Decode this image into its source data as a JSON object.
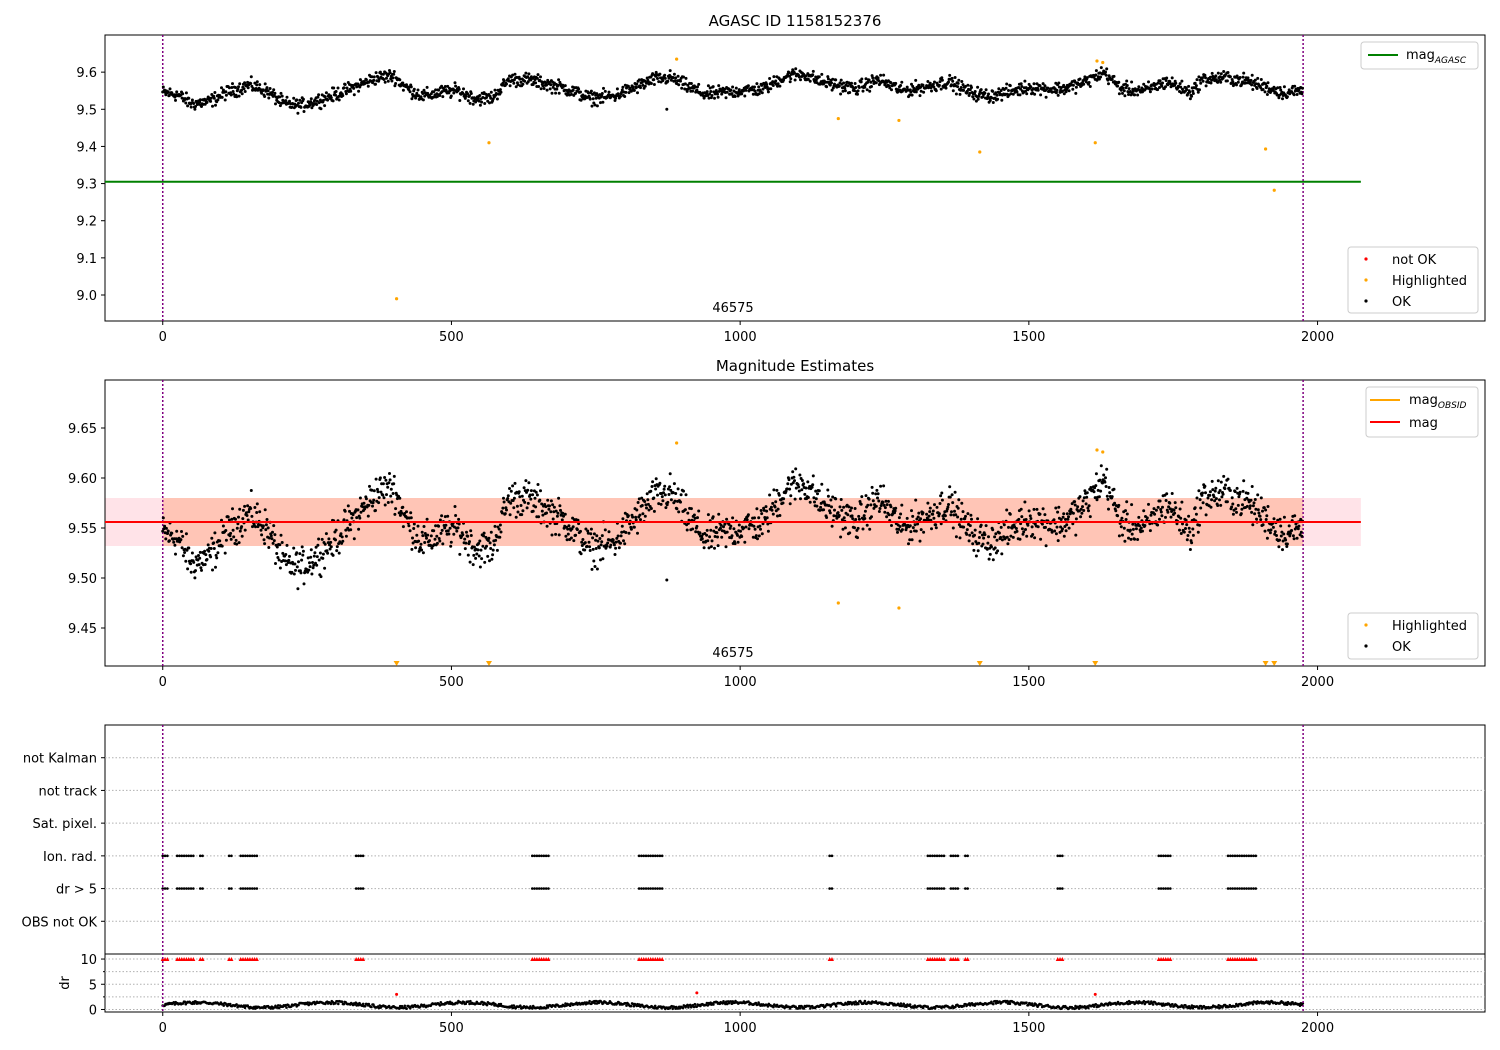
{
  "figure": {
    "chart_data": [
      {
        "type": "scatter",
        "title": "AGASC ID 1158152376",
        "xlim": [
          -100,
          2290
        ],
        "ylim": [
          8.93,
          9.7
        ],
        "xticks": [
          0,
          500,
          1000,
          1500,
          2000
        ],
        "yticks": [
          9.0,
          9.1,
          9.2,
          9.3,
          9.4,
          9.5,
          9.6
        ],
        "vlines": [
          0,
          1975
        ],
        "obsid_label": "46575",
        "hlines": [
          {
            "name": "mag",
            "sub": "AGASC",
            "y": 9.305,
            "x": [
              -100,
              2075
            ],
            "color": "#008000"
          }
        ],
        "series": [
          {
            "name": "not OK",
            "color": "#ff0000",
            "x": [],
            "y": []
          },
          {
            "name": "Highlighted",
            "color": "#ffa500",
            "x": [
              405,
              565,
              890,
              1170,
              1275,
              1415,
              1615,
              1618,
              1628,
              1910,
              1925
            ],
            "y": [
              8.99,
              9.41,
              9.635,
              9.475,
              9.47,
              9.385,
              9.41,
              9.63,
              9.626,
              9.393,
              9.282
            ]
          },
          {
            "name": "OK",
            "color": "#000000",
            "trend": "a",
            "trend_x": [
              0,
              25,
              50,
              80,
              110,
              150,
              180,
              210,
              240,
              270,
              300,
              340,
              370,
              400,
              420,
              450,
              480,
              510,
              540,
              570,
              600,
              630,
              660,
              700,
              740,
              780,
              820,
              850,
              880,
              910,
              940,
              970,
              1000,
              1040,
              1080,
              1110,
              1140,
              1170,
              1200,
              1240,
              1280,
              1320,
              1360,
              1400,
              1430,
              1460,
              1500,
              1530,
              1560,
              1600,
              1630,
              1660,
              1700,
              1740,
              1780,
              1800,
              1840,
              1880,
              1910,
              1940,
              1975
            ],
            "trend_y": [
              9.545,
              9.54,
              9.515,
              9.52,
              9.545,
              9.565,
              9.55,
              9.515,
              9.51,
              9.525,
              9.54,
              9.565,
              9.585,
              9.59,
              9.56,
              9.535,
              9.545,
              9.55,
              9.53,
              9.53,
              9.58,
              9.58,
              9.57,
              9.555,
              9.53,
              9.535,
              9.56,
              9.58,
              9.585,
              9.56,
              9.54,
              9.545,
              9.55,
              9.555,
              9.59,
              9.595,
              9.575,
              9.565,
              9.555,
              9.58,
              9.55,
              9.56,
              9.575,
              9.545,
              9.535,
              9.545,
              9.56,
              9.555,
              9.555,
              9.575,
              9.6,
              9.555,
              9.55,
              9.575,
              9.545,
              9.58,
              9.585,
              9.575,
              9.56,
              9.545,
              9.55
            ]
          },
          {
            "name": "outlier",
            "color": "#000000",
            "x": [
              873
            ],
            "y": [
              9.5
            ]
          }
        ],
        "legend": {
          "upper": [
            "mag AGASC"
          ],
          "lower": [
            "not OK",
            "Highlighted",
            "OK"
          ]
        }
      },
      {
        "type": "scatter",
        "title": "Magnitude Estimates",
        "xlim": [
          -100,
          2290
        ],
        "ylim": [
          9.412,
          9.698
        ],
        "xticks": [
          0,
          500,
          1000,
          1500,
          2000
        ],
        "yticks": [
          9.45,
          9.5,
          9.55,
          9.6,
          9.65
        ],
        "vlines": [
          0,
          1975
        ],
        "obsid_label": "46575",
        "hlines": [
          {
            "name": "mag",
            "sub": "OBSID",
            "y": 9.556,
            "x": [
              0,
              1975
            ],
            "color": "#ffa500"
          },
          {
            "name": "mag",
            "y": 9.556,
            "x": [
              -100,
              2075
            ],
            "color": "#ff0000"
          }
        ],
        "bands": [
          {
            "y": [
              9.532,
              9.58
            ],
            "x": [
              -100,
              2075
            ],
            "color": "#ffc0cb"
          },
          {
            "y": [
              9.532,
              9.58
            ],
            "x": [
              0,
              1975
            ],
            "color": "#ffa07a"
          }
        ],
        "series": [
          {
            "name": "Highlighted",
            "color": "#ffa500",
            "x": [
              890,
              1170,
              1275,
              1618,
              1628
            ],
            "y": [
              9.635,
              9.475,
              9.47,
              9.628,
              9.626
            ]
          },
          {
            "name": "Highlighted below",
            "color": "#ffa500",
            "x": [
              405,
              565,
              1415,
              1615,
              1910,
              1925
            ],
            "y": [
              9.415,
              9.415,
              9.415,
              9.415,
              9.415,
              9.415
            ]
          },
          {
            "name": "OK",
            "color": "#000000",
            "trend": "a"
          },
          {
            "name": "outlier",
            "color": "#000000",
            "x": [
              873
            ],
            "y": [
              9.498
            ]
          }
        ],
        "legend": {
          "upper": [
            "mag OBSID",
            "mag"
          ],
          "lower": [
            "Highlighted",
            "OK"
          ]
        }
      },
      {
        "type": "scatter",
        "title": "",
        "xlim": [
          -100,
          2290
        ],
        "categories": [
          "not Kalman",
          "not track",
          "Sat. pixel.",
          "Ion. rad.",
          "dr > 5",
          "OBS not OK"
        ],
        "flag_groups": [
          [
            0,
            10
          ],
          [
            25,
            55
          ],
          [
            65,
            70
          ],
          [
            115,
            120
          ],
          [
            135,
            165
          ],
          [
            335,
            350
          ],
          [
            640,
            670
          ],
          [
            825,
            865
          ],
          [
            1155,
            1160
          ],
          [
            1325,
            1355
          ],
          [
            1365,
            1380
          ],
          [
            1390,
            1395
          ],
          [
            1550,
            1560
          ],
          [
            1725,
            1745
          ],
          [
            1845,
            1895
          ]
        ],
        "flag_rows": [
          "Ion. rad.",
          "dr > 5"
        ],
        "dr": {
          "ylabel": "dr",
          "ylim": [
            -0.5,
            11
          ],
          "yticks": [
            0,
            5,
            10
          ],
          "threshold": 10,
          "outliers": [
            {
              "x": 405,
              "y": 3.0
            },
            {
              "x": 925,
              "y": 3.3
            },
            {
              "x": 1615,
              "y": 3.0
            }
          ]
        },
        "xticks": [
          0,
          500,
          1000,
          1500,
          2000
        ],
        "vlines": [
          0,
          1975
        ]
      }
    ]
  }
}
